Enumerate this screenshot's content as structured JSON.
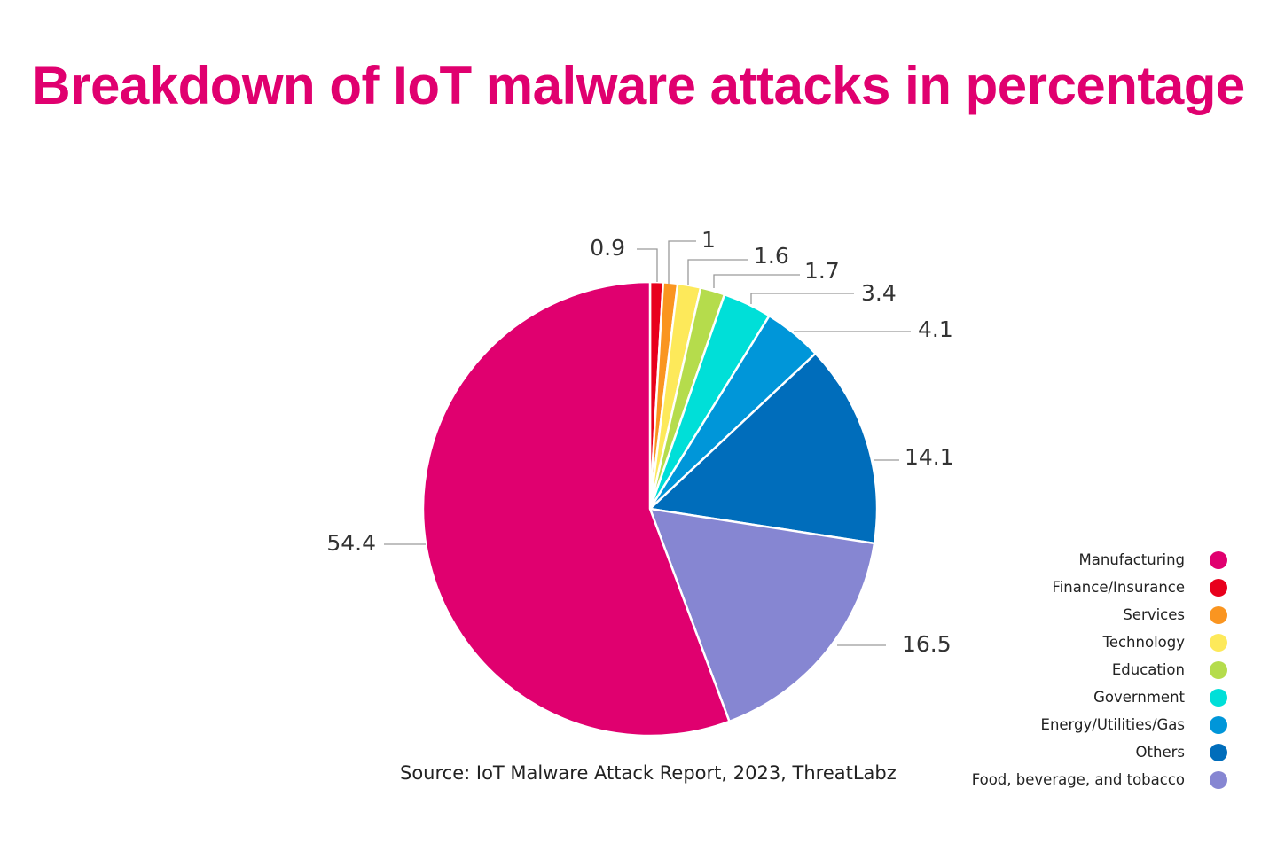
{
  "chart_data": {
    "type": "pie",
    "title": "Breakdown of IoT malware attacks in percentage",
    "start_angle": "12 o'clock",
    "direction": "clockwise",
    "slices": [
      {
        "label": "Finance/Insurance",
        "value": 0.9,
        "display": "0.9",
        "color": "#e8001c"
      },
      {
        "label": "Services",
        "value": 1,
        "display": "1",
        "color": "#fa9520"
      },
      {
        "label": "Technology",
        "value": 1.6,
        "display": "1.6",
        "color": "#fde95a"
      },
      {
        "label": "Education",
        "value": 1.7,
        "display": "1.7",
        "color": "#b5dc4c"
      },
      {
        "label": "Government",
        "value": 3.4,
        "display": "3.4",
        "color": "#00dfd8"
      },
      {
        "label": "Energy/Utilities/Gas",
        "value": 4.1,
        "display": "4.1",
        "color": "#0096d9"
      },
      {
        "label": "Others",
        "value": 14.1,
        "display": "14.1",
        "color": "#006dbb"
      },
      {
        "label": "Food, beverage, and tobacco",
        "value": 16.5,
        "display": "16.5",
        "color": "#8686d2"
      },
      {
        "label": "Manufacturing",
        "value": 54.4,
        "display": "54.4",
        "color": "#e0006f"
      }
    ],
    "legend": {
      "placement": "bottom-right",
      "order": [
        "Manufacturing",
        "Finance/Insurance",
        "Services",
        "Technology",
        "Education",
        "Government",
        "Energy/Utilities/Gas",
        "Others",
        "Food, beverage, and tobacco"
      ]
    },
    "source": "Source: IoT Malware Attack Report, 2023, ThreatLabz"
  }
}
